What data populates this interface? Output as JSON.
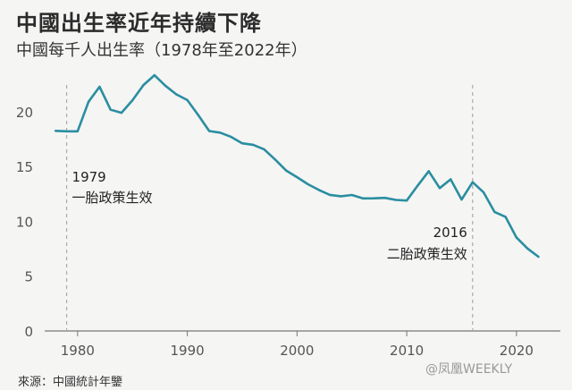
{
  "title": "中國出生率近年持續下降",
  "subtitle": "中國每千人出生率（1978年至2022年）",
  "source": "來源：中國統計年鑒",
  "watermark": "@凤凰WEEKLY",
  "colors": {
    "line": "#2a8ea0",
    "axis": "#777777",
    "grid": "#d8d8d8",
    "text": "#222222"
  },
  "chart_data": {
    "type": "line",
    "title": "中國出生率近年持續下降",
    "subtitle": "中國每千人出生率（1978年至2022年）",
    "xlabel": "",
    "ylabel": "",
    "xlim": [
      1977,
      2024
    ],
    "ylim": [
      0,
      23.5
    ],
    "xticks": [
      1980,
      1990,
      2000,
      2010,
      2020
    ],
    "yticks": [
      0,
      5,
      10,
      15,
      20
    ],
    "grid": false,
    "x": [
      1978,
      1979,
      1980,
      1981,
      1982,
      1983,
      1984,
      1985,
      1986,
      1987,
      1988,
      1989,
      1990,
      1991,
      1992,
      1993,
      1994,
      1995,
      1996,
      1997,
      1998,
      1999,
      2000,
      2001,
      2002,
      2003,
      2004,
      2005,
      2006,
      2007,
      2008,
      2009,
      2010,
      2011,
      2012,
      2013,
      2014,
      2015,
      2016,
      2017,
      2018,
      2019,
      2020,
      2021,
      2022
    ],
    "series": [
      {
        "values": [
          18.25,
          18.21,
          18.21,
          20.91,
          22.28,
          20.19,
          19.9,
          21.04,
          22.43,
          23.33,
          22.37,
          21.58,
          21.06,
          19.68,
          18.24,
          18.09,
          17.7,
          17.12,
          16.98,
          16.57,
          15.64,
          14.64,
          14.03,
          13.38,
          12.86,
          12.41,
          12.29,
          12.4,
          12.09,
          12.1,
          12.14,
          11.95,
          11.9,
          13.27,
          14.57,
          13.03,
          13.83,
          11.99,
          13.57,
          12.64,
          10.86,
          10.41,
          8.52,
          7.52,
          6.77
        ]
      }
    ],
    "annotations": [
      {
        "x": 1979,
        "year_label": "1979",
        "text": "一胎政策生效"
      },
      {
        "x": 2016,
        "year_label": "2016",
        "text": "二胎政策生效"
      }
    ]
  }
}
